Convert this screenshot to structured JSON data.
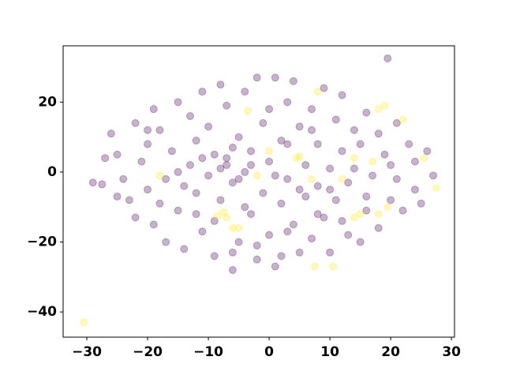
{
  "chart_data": {
    "type": "scatter",
    "xlim": [
      -33.9,
      30.5
    ],
    "ylim": [
      -47.2,
      36.1
    ],
    "xticks": [
      {
        "value": -30,
        "label": "−30"
      },
      {
        "value": -20,
        "label": "−20"
      },
      {
        "value": -10,
        "label": "−10"
      },
      0,
      10,
      20,
      30
    ],
    "yticks": [
      {
        "value": -40,
        "label": "−40"
      },
      {
        "value": -20,
        "label": "−20"
      },
      0,
      20
    ],
    "alpha": 0.3,
    "series": [
      {
        "color": "#440154",
        "x": [
          -27.5,
          -27,
          -26,
          -25,
          -24,
          -23,
          -22,
          -22,
          -21,
          -20,
          -20,
          -19,
          -19,
          -18,
          -17,
          -17,
          -16,
          -15,
          -15,
          -14,
          -13,
          -13,
          -12,
          -12,
          -11,
          -11,
          -10,
          -10,
          -9,
          -9,
          -8,
          -8,
          -7,
          -7,
          -6,
          -6,
          -5,
          -5,
          -4,
          -4,
          -3,
          -3,
          -2,
          -2,
          -1,
          -1,
          0,
          0,
          1,
          1,
          2,
          2,
          3,
          3,
          4,
          4,
          5,
          5,
          6,
          6,
          7,
          7,
          8,
          8,
          9,
          9,
          10,
          10,
          11,
          11,
          12,
          12,
          13,
          13,
          14,
          15,
          15,
          16,
          16,
          17,
          18,
          18,
          19,
          19.5,
          20,
          21,
          21,
          22,
          23,
          24,
          24,
          25,
          26,
          27,
          -29,
          -25,
          -18,
          -14,
          -9,
          -2,
          3,
          8,
          12,
          5,
          -3,
          -7,
          -5,
          1,
          -8,
          -6,
          10,
          3,
          -11,
          -15,
          14,
          20,
          -20,
          16,
          -4,
          0,
          7,
          -12,
          2,
          -6
        ],
        "values": [
          -3.5,
          4,
          11,
          5,
          -2,
          -8,
          14,
          -13,
          3,
          8,
          -5,
          18,
          -15,
          12,
          -2,
          -20,
          6,
          20,
          -11,
          -22,
          16,
          2,
          -6,
          9,
          23,
          -17,
          -1,
          13,
          -24,
          5,
          25,
          -8,
          19,
          2,
          -3,
          -28,
          10,
          -20,
          0,
          23,
          -12,
          6,
          27,
          -25,
          14,
          -6,
          3,
          -18,
          27,
          -27,
          9,
          -9,
          20,
          -2,
          -15,
          26,
          13,
          -23,
          -7,
          2,
          18,
          -19,
          8,
          -4,
          24,
          -13,
          -23,
          1,
          15,
          -8,
          22,
          6,
          -18,
          -3,
          12,
          -20,
          8,
          -7,
          17,
          -1,
          11,
          -16,
          5,
          32.5,
          -8,
          14,
          -2,
          -11,
          8,
          -5,
          3,
          -9,
          6,
          -1,
          -3,
          -7,
          -9,
          -4,
          -14,
          -21,
          -17,
          -12,
          -14,
          -5,
          2,
          4,
          -2,
          -1,
          1,
          7,
          -5,
          8,
          4,
          0,
          1,
          2,
          12,
          -11,
          -10,
          18,
          12,
          -12,
          -24,
          -23
        ]
      },
      {
        "color": "#fde725",
        "x": [
          -30.5,
          8,
          18,
          19,
          22,
          25.5,
          27.5,
          19.5,
          18,
          15,
          17,
          14,
          5,
          4.5,
          7,
          -2,
          0,
          -3.5,
          -7.5,
          -7,
          -6,
          -5,
          -8.5,
          -18,
          7.5,
          10.5,
          12,
          14
        ],
        "values": [
          -43,
          23,
          18,
          19,
          15,
          4,
          -4.5,
          -10,
          -12,
          -12,
          3,
          4,
          4.5,
          4,
          -2,
          -1,
          6,
          17.5,
          -11.5,
          -13,
          -16,
          -16,
          -12.5,
          -1,
          -27,
          -27,
          -2,
          -13
        ]
      }
    ]
  }
}
